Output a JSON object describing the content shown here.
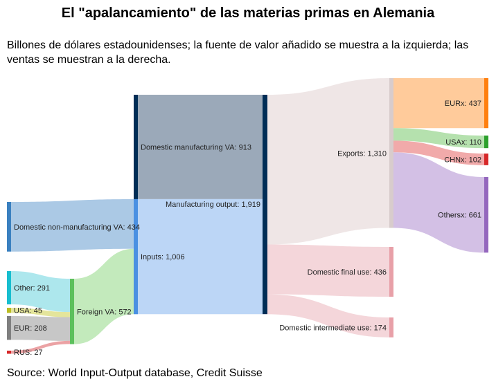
{
  "title": "El \"apalancamiento\" de las materias primas en Alemania",
  "subtitle": "Billones de dólares estadounidenses; la fuente de valor añadido se muestra a la izquierda; las ventas se muestran a la derecha.",
  "source": "Source: World Input-Output database, Credit Suisse",
  "chart_data": {
    "type": "sankey",
    "units": "Billones de dólares estadounidenses",
    "nodes": [
      {
        "id": "dmva",
        "label": "Domestic manufacturing VA: 913",
        "value": 913,
        "color": "#002d56"
      },
      {
        "id": "dnmva",
        "label": "Domestic non-manufacturing VA: 434",
        "value": 434,
        "color": "#3a80c0"
      },
      {
        "id": "other",
        "label": "Other: 291",
        "value": 291,
        "color": "#17becf"
      },
      {
        "id": "usa",
        "label": "USA: 45",
        "value": 45,
        "color": "#bcbd22"
      },
      {
        "id": "eur",
        "label": "EUR: 208",
        "value": 208,
        "color": "#7f7f7f"
      },
      {
        "id": "rus",
        "label": "RUS: 27",
        "value": 27,
        "color": "#d62728"
      },
      {
        "id": "fva",
        "label": "Foreign VA: 572",
        "value": 572,
        "color": "#5cc05c"
      },
      {
        "id": "inputs",
        "label": "Inputs: 1,006",
        "value": 1006,
        "color": "#4a90e2"
      },
      {
        "id": "mo",
        "label": "Manufacturing output: 1,919",
        "value": 1919,
        "color": "#002d56"
      },
      {
        "id": "exports",
        "label": "Exports: 1,310",
        "value": 1310,
        "color": "#d8cccc"
      },
      {
        "id": "dfu",
        "label": "Domestic final use: 436",
        "value": 436,
        "color": "#e8a0a8"
      },
      {
        "id": "diu",
        "label": "Domestic intermediate use: 174",
        "value": 174,
        "color": "#e8a0a8"
      },
      {
        "id": "eurx",
        "label": "EURx: 437",
        "value": 437,
        "color": "#ff7f0e"
      },
      {
        "id": "usax",
        "label": "USAx: 110",
        "value": 110,
        "color": "#2ca02c"
      },
      {
        "id": "chnx",
        "label": "CHNx: 102",
        "value": 102,
        "color": "#d62728"
      },
      {
        "id": "othersx",
        "label": "Othersx: 661",
        "value": 661,
        "color": "#9467bd"
      }
    ],
    "links": [
      {
        "source": "dmva",
        "target": "mo",
        "value": 913
      },
      {
        "source": "dnmva",
        "target": "inputs",
        "value": 434
      },
      {
        "source": "other",
        "target": "fva",
        "value": 291
      },
      {
        "source": "usa",
        "target": "fva",
        "value": 45
      },
      {
        "source": "eur",
        "target": "fva",
        "value": 208
      },
      {
        "source": "rus",
        "target": "fva",
        "value": 27
      },
      {
        "source": "fva",
        "target": "inputs",
        "value": 572
      },
      {
        "source": "inputs",
        "target": "mo",
        "value": 1006
      },
      {
        "source": "mo",
        "target": "exports",
        "value": 1310
      },
      {
        "source": "mo",
        "target": "dfu",
        "value": 436
      },
      {
        "source": "mo",
        "target": "diu",
        "value": 174
      },
      {
        "source": "exports",
        "target": "eurx",
        "value": 437
      },
      {
        "source": "exports",
        "target": "usax",
        "value": 110
      },
      {
        "source": "exports",
        "target": "chnx",
        "value": 102
      },
      {
        "source": "exports",
        "target": "othersx",
        "value": 661
      }
    ]
  }
}
